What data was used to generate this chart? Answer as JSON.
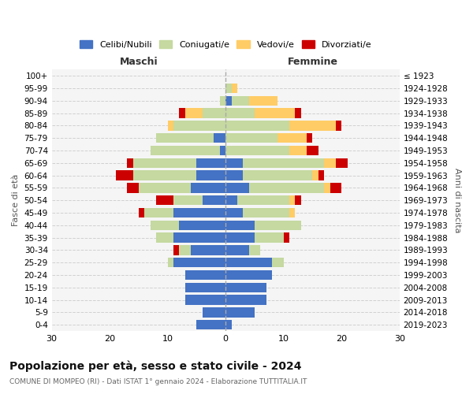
{
  "age_groups": [
    "0-4",
    "5-9",
    "10-14",
    "15-19",
    "20-24",
    "25-29",
    "30-34",
    "35-39",
    "40-44",
    "45-49",
    "50-54",
    "55-59",
    "60-64",
    "65-69",
    "70-74",
    "75-79",
    "80-84",
    "85-89",
    "90-94",
    "95-99",
    "100+"
  ],
  "birth_years": [
    "2019-2023",
    "2014-2018",
    "2009-2013",
    "2004-2008",
    "1999-2003",
    "1994-1998",
    "1989-1993",
    "1984-1988",
    "1979-1983",
    "1974-1978",
    "1969-1973",
    "1964-1968",
    "1959-1963",
    "1954-1958",
    "1949-1953",
    "1944-1948",
    "1939-1943",
    "1934-1938",
    "1929-1933",
    "1924-1928",
    "≤ 1923"
  ],
  "maschi": {
    "celibi": [
      5,
      4,
      7,
      7,
      7,
      9,
      6,
      9,
      8,
      9,
      4,
      6,
      5,
      5,
      1,
      2,
      0,
      0,
      0,
      0,
      0
    ],
    "coniugati": [
      0,
      0,
      0,
      0,
      0,
      1,
      2,
      3,
      5,
      5,
      5,
      9,
      11,
      11,
      12,
      10,
      9,
      4,
      1,
      0,
      0
    ],
    "vedovi": [
      0,
      0,
      0,
      0,
      0,
      0,
      0,
      0,
      0,
      0,
      0,
      0,
      0,
      0,
      0,
      0,
      1,
      3,
      0,
      0,
      0
    ],
    "divorziati": [
      0,
      0,
      0,
      0,
      0,
      0,
      1,
      0,
      0,
      1,
      3,
      2,
      3,
      1,
      0,
      0,
      0,
      1,
      0,
      0,
      0
    ]
  },
  "femmine": {
    "nubili": [
      1,
      5,
      7,
      7,
      8,
      8,
      4,
      5,
      5,
      3,
      2,
      4,
      3,
      3,
      0,
      0,
      0,
      0,
      1,
      0,
      0
    ],
    "coniugate": [
      0,
      0,
      0,
      0,
      0,
      2,
      2,
      5,
      8,
      8,
      9,
      13,
      12,
      14,
      11,
      9,
      11,
      5,
      3,
      1,
      0
    ],
    "vedove": [
      0,
      0,
      0,
      0,
      0,
      0,
      0,
      0,
      0,
      1,
      1,
      1,
      1,
      2,
      3,
      5,
      8,
      7,
      5,
      1,
      0
    ],
    "divorziate": [
      0,
      0,
      0,
      0,
      0,
      0,
      0,
      1,
      0,
      0,
      1,
      2,
      1,
      2,
      2,
      1,
      1,
      1,
      0,
      0,
      0
    ]
  },
  "colors": {
    "celibi": "#4472c4",
    "coniugati": "#c5d9a0",
    "vedovi": "#ffcc66",
    "divorziati": "#cc0000"
  },
  "xlim": 30,
  "title": "Popolazione per età, sesso e stato civile - 2024",
  "subtitle": "COMUNE DI MOMPEO (RI) - Dati ISTAT 1° gennaio 2024 - Elaborazione TUTTITALIA.IT",
  "ylabel_left": "Fasce di età",
  "ylabel_right": "Anni di nascita",
  "xlabel_maschi": "Maschi",
  "xlabel_femmine": "Femmine",
  "legend_labels": [
    "Celibi/Nubili",
    "Coniugati/e",
    "Vedovi/e",
    "Divorziati/e"
  ]
}
